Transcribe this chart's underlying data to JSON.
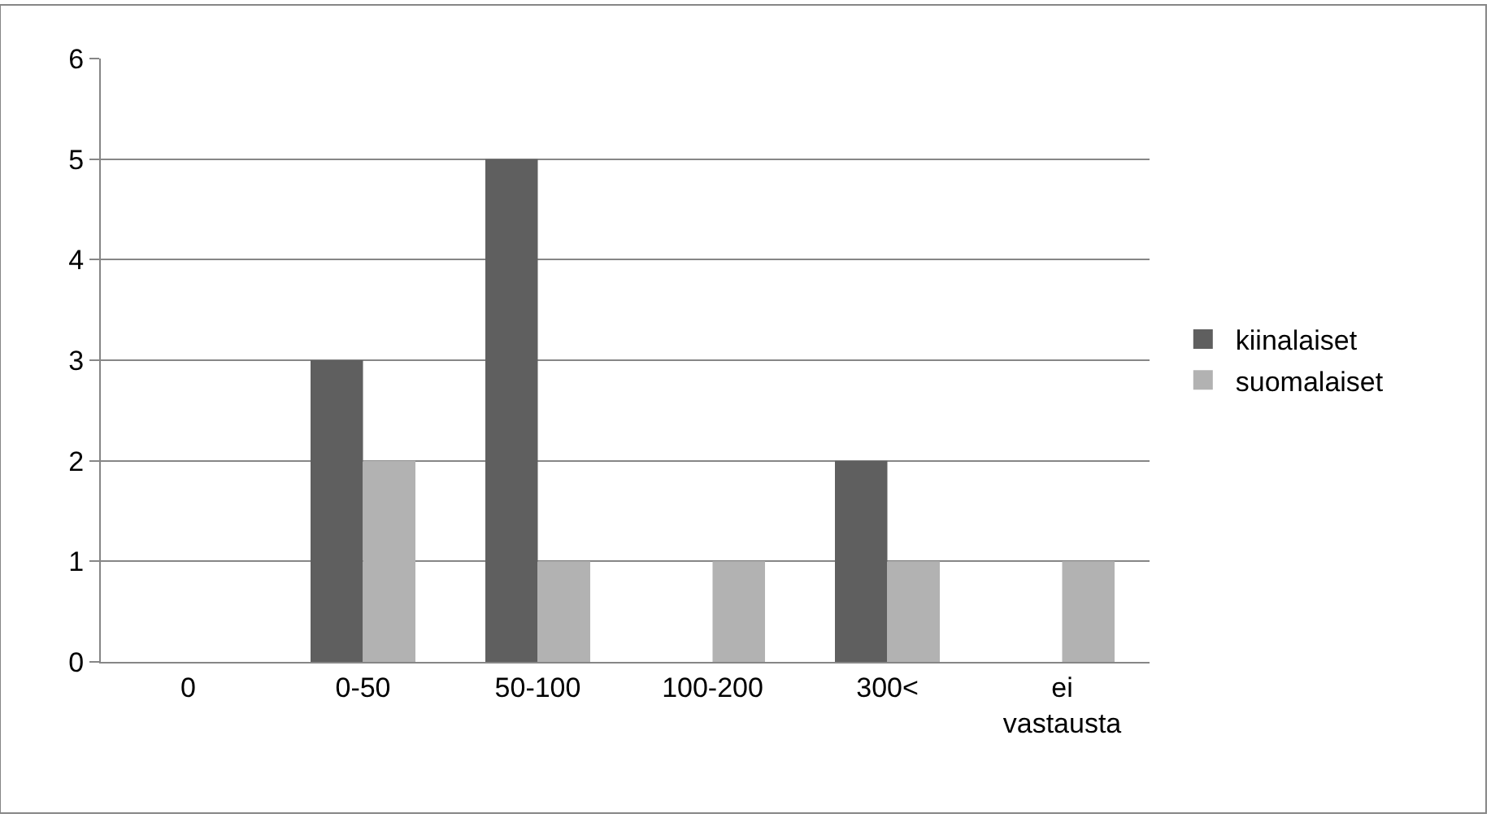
{
  "chart_data": {
    "type": "bar",
    "categories": [
      "0",
      "0-50",
      "50-100",
      "100-200",
      "300<",
      "ei vastausta"
    ],
    "series": [
      {
        "name": "kiinalaiset",
        "color": "#5f5f5f",
        "values": [
          0,
          3,
          5,
          0,
          2,
          0
        ]
      },
      {
        "name": "suomalaiset",
        "color": "#b2b2b2",
        "values": [
          0,
          2,
          1,
          1,
          1,
          1
        ]
      }
    ],
    "ylim": [
      0,
      6
    ],
    "yticks": [
      0,
      1,
      2,
      3,
      4,
      5,
      6
    ],
    "grid": "y",
    "legend": "right"
  }
}
